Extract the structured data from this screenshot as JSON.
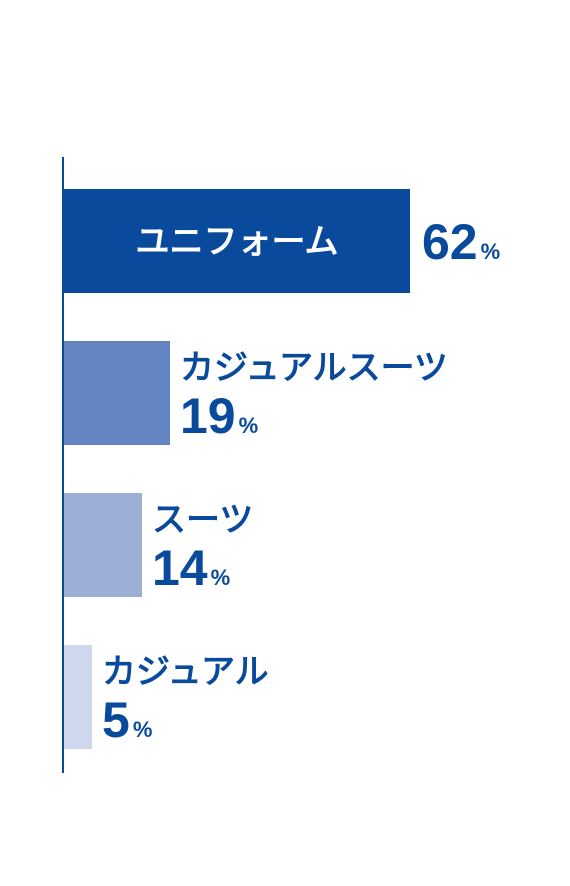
{
  "chart_data": {
    "type": "bar",
    "orientation": "horizontal",
    "categories": [
      "ユニフォーム",
      "カジュアルスーツ",
      "スーツ",
      "カジュアル"
    ],
    "values": [
      62,
      19,
      14,
      5
    ],
    "unit": "%",
    "xlim": [
      0,
      62
    ],
    "grid": false,
    "legend": "none",
    "colors": [
      "#0a4a9c",
      "#6386c2",
      "#9aaed6",
      "#cfd6ee"
    ],
    "axis_color": "#0a4a9c"
  }
}
